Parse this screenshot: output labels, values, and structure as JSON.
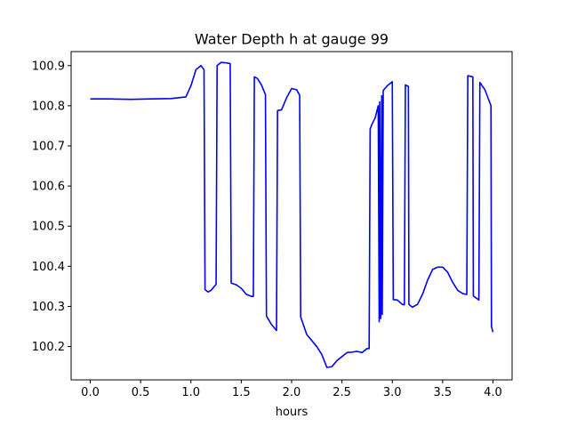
{
  "chart_data": {
    "type": "line",
    "title": "Water Depth h at gauge 99",
    "xlabel": "hours",
    "ylabel": "",
    "xlim": [
      -0.19,
      4.19
    ],
    "ylim": [
      100.117,
      100.935
    ],
    "x_ticks": [
      0.0,
      0.5,
      1.0,
      1.5,
      2.0,
      2.5,
      3.0,
      3.5,
      4.0
    ],
    "x_tick_labels": [
      "0.0",
      "0.5",
      "1.0",
      "1.5",
      "2.0",
      "2.5",
      "3.0",
      "3.5",
      "4.0"
    ],
    "y_ticks": [
      100.2,
      100.3,
      100.4,
      100.5,
      100.6,
      100.7,
      100.8,
      100.9
    ],
    "y_tick_labels": [
      "100.2",
      "100.3",
      "100.4",
      "100.5",
      "100.6",
      "100.7",
      "100.8",
      "100.9"
    ],
    "grid": false,
    "legend": "none",
    "series": [
      {
        "color": "#0000ff",
        "points": [
          [
            0.0,
            100.817
          ],
          [
            0.2,
            100.817
          ],
          [
            0.4,
            100.816
          ],
          [
            0.6,
            100.817
          ],
          [
            0.8,
            100.818
          ],
          [
            0.95,
            100.822
          ],
          [
            1.0,
            100.85
          ],
          [
            1.05,
            100.89
          ],
          [
            1.1,
            100.9
          ],
          [
            1.13,
            100.89
          ],
          [
            1.14,
            100.342
          ],
          [
            1.17,
            100.336
          ],
          [
            1.2,
            100.34
          ],
          [
            1.25,
            100.355
          ],
          [
            1.26,
            100.9
          ],
          [
            1.3,
            100.908
          ],
          [
            1.35,
            100.907
          ],
          [
            1.39,
            100.905
          ],
          [
            1.4,
            100.358
          ],
          [
            1.45,
            100.354
          ],
          [
            1.5,
            100.345
          ],
          [
            1.55,
            100.33
          ],
          [
            1.6,
            100.325
          ],
          [
            1.62,
            100.325
          ],
          [
            1.63,
            100.872
          ],
          [
            1.66,
            100.868
          ],
          [
            1.7,
            100.852
          ],
          [
            1.74,
            100.828
          ],
          [
            1.75,
            100.276
          ],
          [
            1.8,
            100.255
          ],
          [
            1.85,
            100.24
          ],
          [
            1.86,
            100.788
          ],
          [
            1.9,
            100.79
          ],
          [
            1.95,
            100.82
          ],
          [
            2.0,
            100.843
          ],
          [
            2.05,
            100.84
          ],
          [
            2.08,
            100.826
          ],
          [
            2.09,
            100.274
          ],
          [
            2.15,
            100.23
          ],
          [
            2.25,
            100.2
          ],
          [
            2.3,
            100.18
          ],
          [
            2.35,
            100.148
          ],
          [
            2.4,
            100.15
          ],
          [
            2.45,
            100.165
          ],
          [
            2.5,
            100.175
          ],
          [
            2.55,
            100.185
          ],
          [
            2.6,
            100.186
          ],
          [
            2.65,
            100.188
          ],
          [
            2.7,
            100.185
          ],
          [
            2.75,
            100.195
          ],
          [
            2.77,
            100.195
          ],
          [
            2.78,
            100.742
          ],
          [
            2.8,
            100.755
          ],
          [
            2.83,
            100.77
          ],
          [
            2.86,
            100.8
          ],
          [
            2.87,
            100.262
          ],
          [
            2.875,
            100.81
          ],
          [
            2.885,
            100.27
          ],
          [
            2.895,
            100.825
          ],
          [
            2.9,
            100.28
          ],
          [
            2.91,
            100.838
          ],
          [
            2.95,
            100.85
          ],
          [
            3.0,
            100.86
          ],
          [
            3.01,
            100.317
          ],
          [
            3.05,
            100.316
          ],
          [
            3.1,
            100.305
          ],
          [
            3.12,
            100.304
          ],
          [
            3.13,
            100.852
          ],
          [
            3.16,
            100.848
          ],
          [
            3.165,
            100.305
          ],
          [
            3.2,
            100.298
          ],
          [
            3.25,
            100.305
          ],
          [
            3.3,
            100.33
          ],
          [
            3.35,
            100.365
          ],
          [
            3.4,
            100.392
          ],
          [
            3.45,
            100.398
          ],
          [
            3.5,
            100.398
          ],
          [
            3.55,
            100.385
          ],
          [
            3.6,
            100.36
          ],
          [
            3.65,
            100.34
          ],
          [
            3.7,
            100.332
          ],
          [
            3.74,
            100.33
          ],
          [
            3.75,
            100.875
          ],
          [
            3.8,
            100.872
          ],
          [
            3.805,
            100.326
          ],
          [
            3.85,
            100.318
          ],
          [
            3.86,
            100.316
          ],
          [
            3.87,
            100.858
          ],
          [
            3.92,
            100.84
          ],
          [
            3.98,
            100.8
          ],
          [
            3.985,
            100.25
          ],
          [
            4.0,
            100.236
          ]
        ]
      }
    ]
  }
}
